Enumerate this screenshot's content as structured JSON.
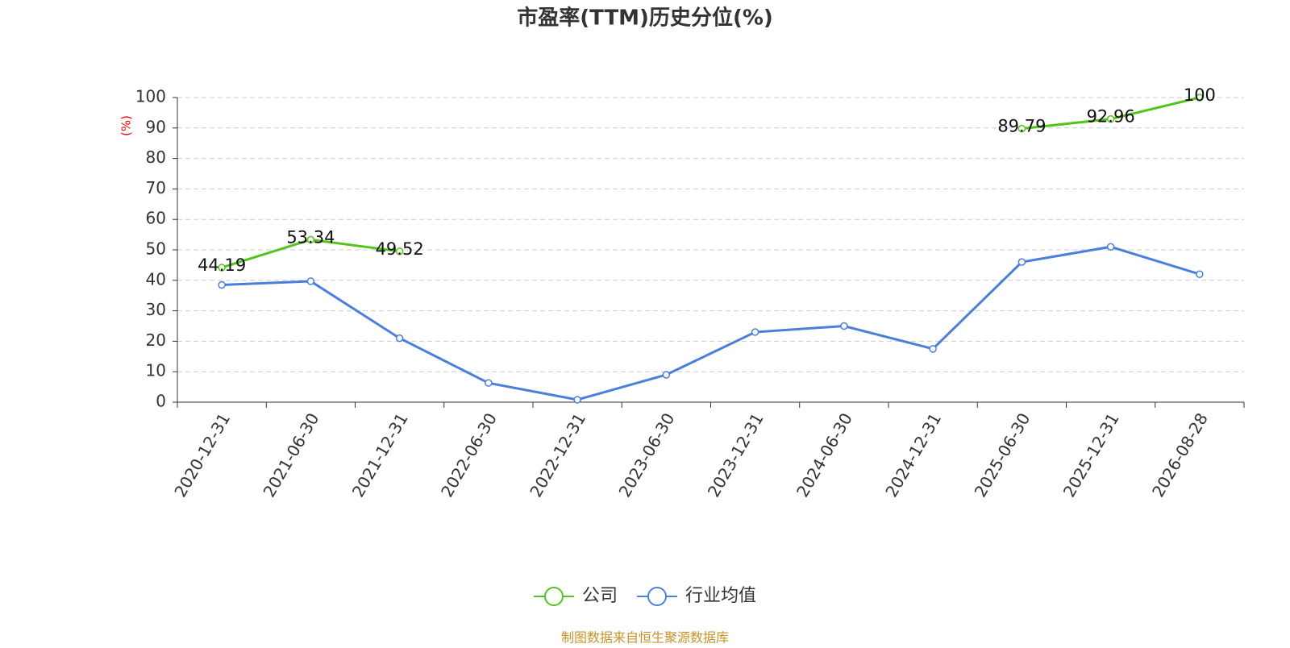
{
  "chart_data": {
    "type": "line",
    "title": "市盈率(TTM)历史分位(%)",
    "y_label": "(%)",
    "source": "制图数据来自恒生聚源数据库",
    "categories": [
      "2020-12-31",
      "2021-06-30",
      "2021-12-31",
      "2022-06-30",
      "2022-12-31",
      "2023-06-30",
      "2023-12-31",
      "2024-06-30",
      "2024-12-31",
      "2025-06-30",
      "2025-12-31",
      "2026-08-28"
    ],
    "series": [
      {
        "name": "公司",
        "color": "#52c41a",
        "values": [
          44.19,
          53.34,
          49.52,
          null,
          null,
          null,
          null,
          null,
          null,
          89.79,
          92.96,
          100
        ]
      },
      {
        "name": "行业均值",
        "color": "#4a7fdc",
        "values": [
          38.5,
          39.7,
          21,
          6.3,
          0.8,
          9,
          23,
          25,
          17.5,
          46,
          51,
          42
        ]
      }
    ],
    "ylim": [
      0,
      100
    ],
    "yticks": [
      0,
      10,
      20,
      30,
      40,
      50,
      60,
      70,
      80,
      90,
      100
    ],
    "grid": true
  }
}
